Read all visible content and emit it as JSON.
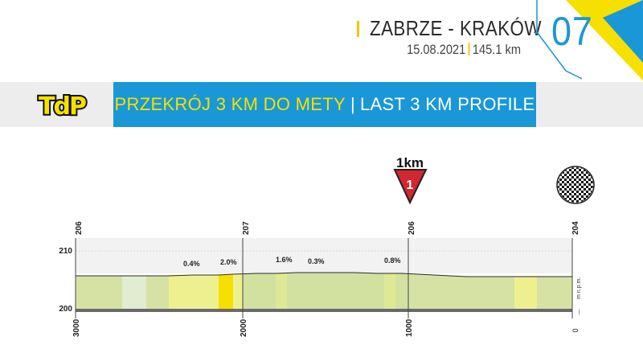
{
  "header": {
    "route": "ZABRZE - KRAKÓW",
    "date": "15.08.2021",
    "distance": "145.1 km"
  },
  "stage": {
    "number": "07"
  },
  "banner": {
    "title_pl": "PRZEKRÓJ 3 KM DO METY",
    "separator": "|",
    "title_en": "LAST 3 KM PROFILE"
  },
  "logo": {
    "text": "TdP",
    "colors": {
      "letters": "#f6e000",
      "outline": "#111111"
    }
  },
  "markers": {
    "km_to_go": {
      "label": "1km",
      "number": "1"
    },
    "finish_flag": "checkered-flag-icon"
  },
  "elevation_axis": {
    "labels": [
      "210",
      "200"
    ],
    "unit": "m n.p.m.",
    "zero_label": "0"
  },
  "distance_labels": [
    "3000",
    "2000",
    "1000"
  ],
  "altitude_labels": [
    "206",
    "207",
    "206",
    "204"
  ],
  "gradients": [
    "0.4%",
    "2.0%",
    "1.6%",
    "0.3%",
    "0.8%"
  ],
  "colors": {
    "blue": "#1a97d6",
    "yellow": "#f6e000",
    "profile_green": "#d5e2a4",
    "profile_yellow": "#eef08f",
    "road": "#6a6a6a",
    "marker_red": "#d22630"
  }
}
